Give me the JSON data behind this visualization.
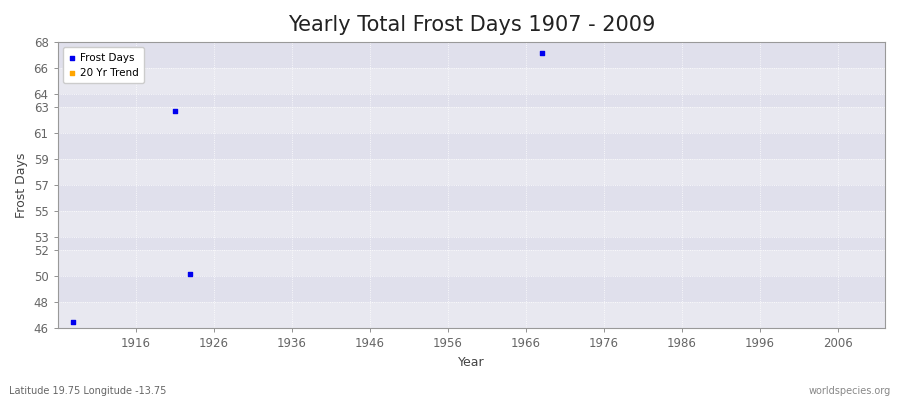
{
  "title": "Yearly Total Frost Days 1907 - 2009",
  "xlabel": "Year",
  "ylabel": "Frost Days",
  "subtitle_lat": "Latitude 19.75 Longitude -13.75",
  "watermark": "worldspecies.org",
  "data_points": [
    {
      "year": 1908,
      "value": 46.5
    },
    {
      "year": 1921,
      "value": 62.7
    },
    {
      "year": 1923,
      "value": 50.2
    },
    {
      "year": 1968,
      "value": 67.2
    }
  ],
  "point_color": "#0000EE",
  "trend_color": "#FFA500",
  "xlim": [
    1906,
    2012
  ],
  "ylim": [
    46,
    68
  ],
  "xticks": [
    1916,
    1926,
    1936,
    1946,
    1956,
    1966,
    1976,
    1986,
    1996,
    2006
  ],
  "yticks": [
    46,
    48,
    50,
    52,
    53,
    55,
    57,
    59,
    61,
    63,
    64,
    66,
    68
  ],
  "fig_bg_color": "#FFFFFF",
  "plot_bg_color": "#EEEEF4",
  "band_color_light": "#E8E8F0",
  "band_color_dark": "#E0E0EC",
  "grid_color": "#FFFFFF",
  "spine_color": "#999999",
  "tick_color": "#666666",
  "title_fontsize": 15,
  "label_fontsize": 9,
  "tick_fontsize": 8.5
}
